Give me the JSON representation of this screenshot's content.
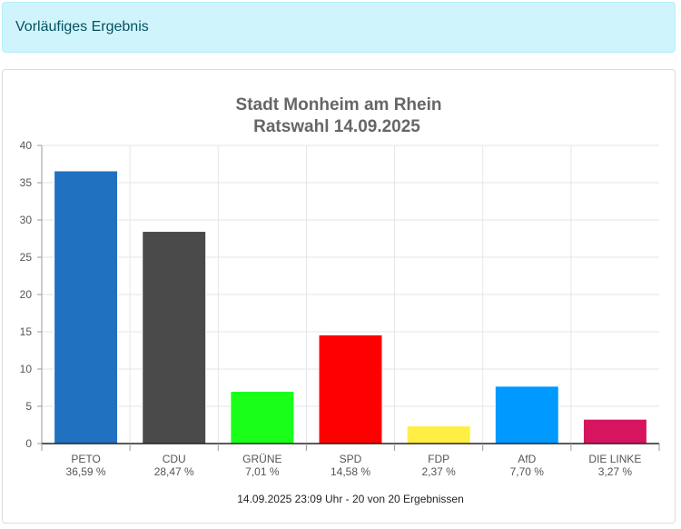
{
  "alert": {
    "text": "Vorläufiges Ergebnis"
  },
  "chart_data": {
    "type": "bar",
    "title": [
      "Stadt Monheim am Rhein",
      "Ratswahl 14.09.2025"
    ],
    "categories": [
      "PETO",
      "CDU",
      "GRÜNE",
      "SPD",
      "FDP",
      "AfD",
      "DIE LINKE"
    ],
    "value_labels": [
      "36,59 %",
      "28,47 %",
      "7,01 %",
      "14,58 %",
      "2,37 %",
      "7,70 %",
      "3,27 %"
    ],
    "values": [
      36.59,
      28.47,
      7.01,
      14.58,
      2.37,
      7.7,
      3.27
    ],
    "colors": [
      "#2171c1",
      "#4a4a4a",
      "#1aff1a",
      "#ff0000",
      "#ffee44",
      "#0099ff",
      "#d6145f"
    ],
    "ylim": [
      0,
      40
    ],
    "yticks": [
      0,
      5,
      10,
      15,
      20,
      25,
      30,
      35,
      40
    ],
    "grid": true,
    "xlabel": "",
    "ylabel": "",
    "footer": "14.09.2025 23:09 Uhr - 20 von 20 Ergebnissen"
  }
}
